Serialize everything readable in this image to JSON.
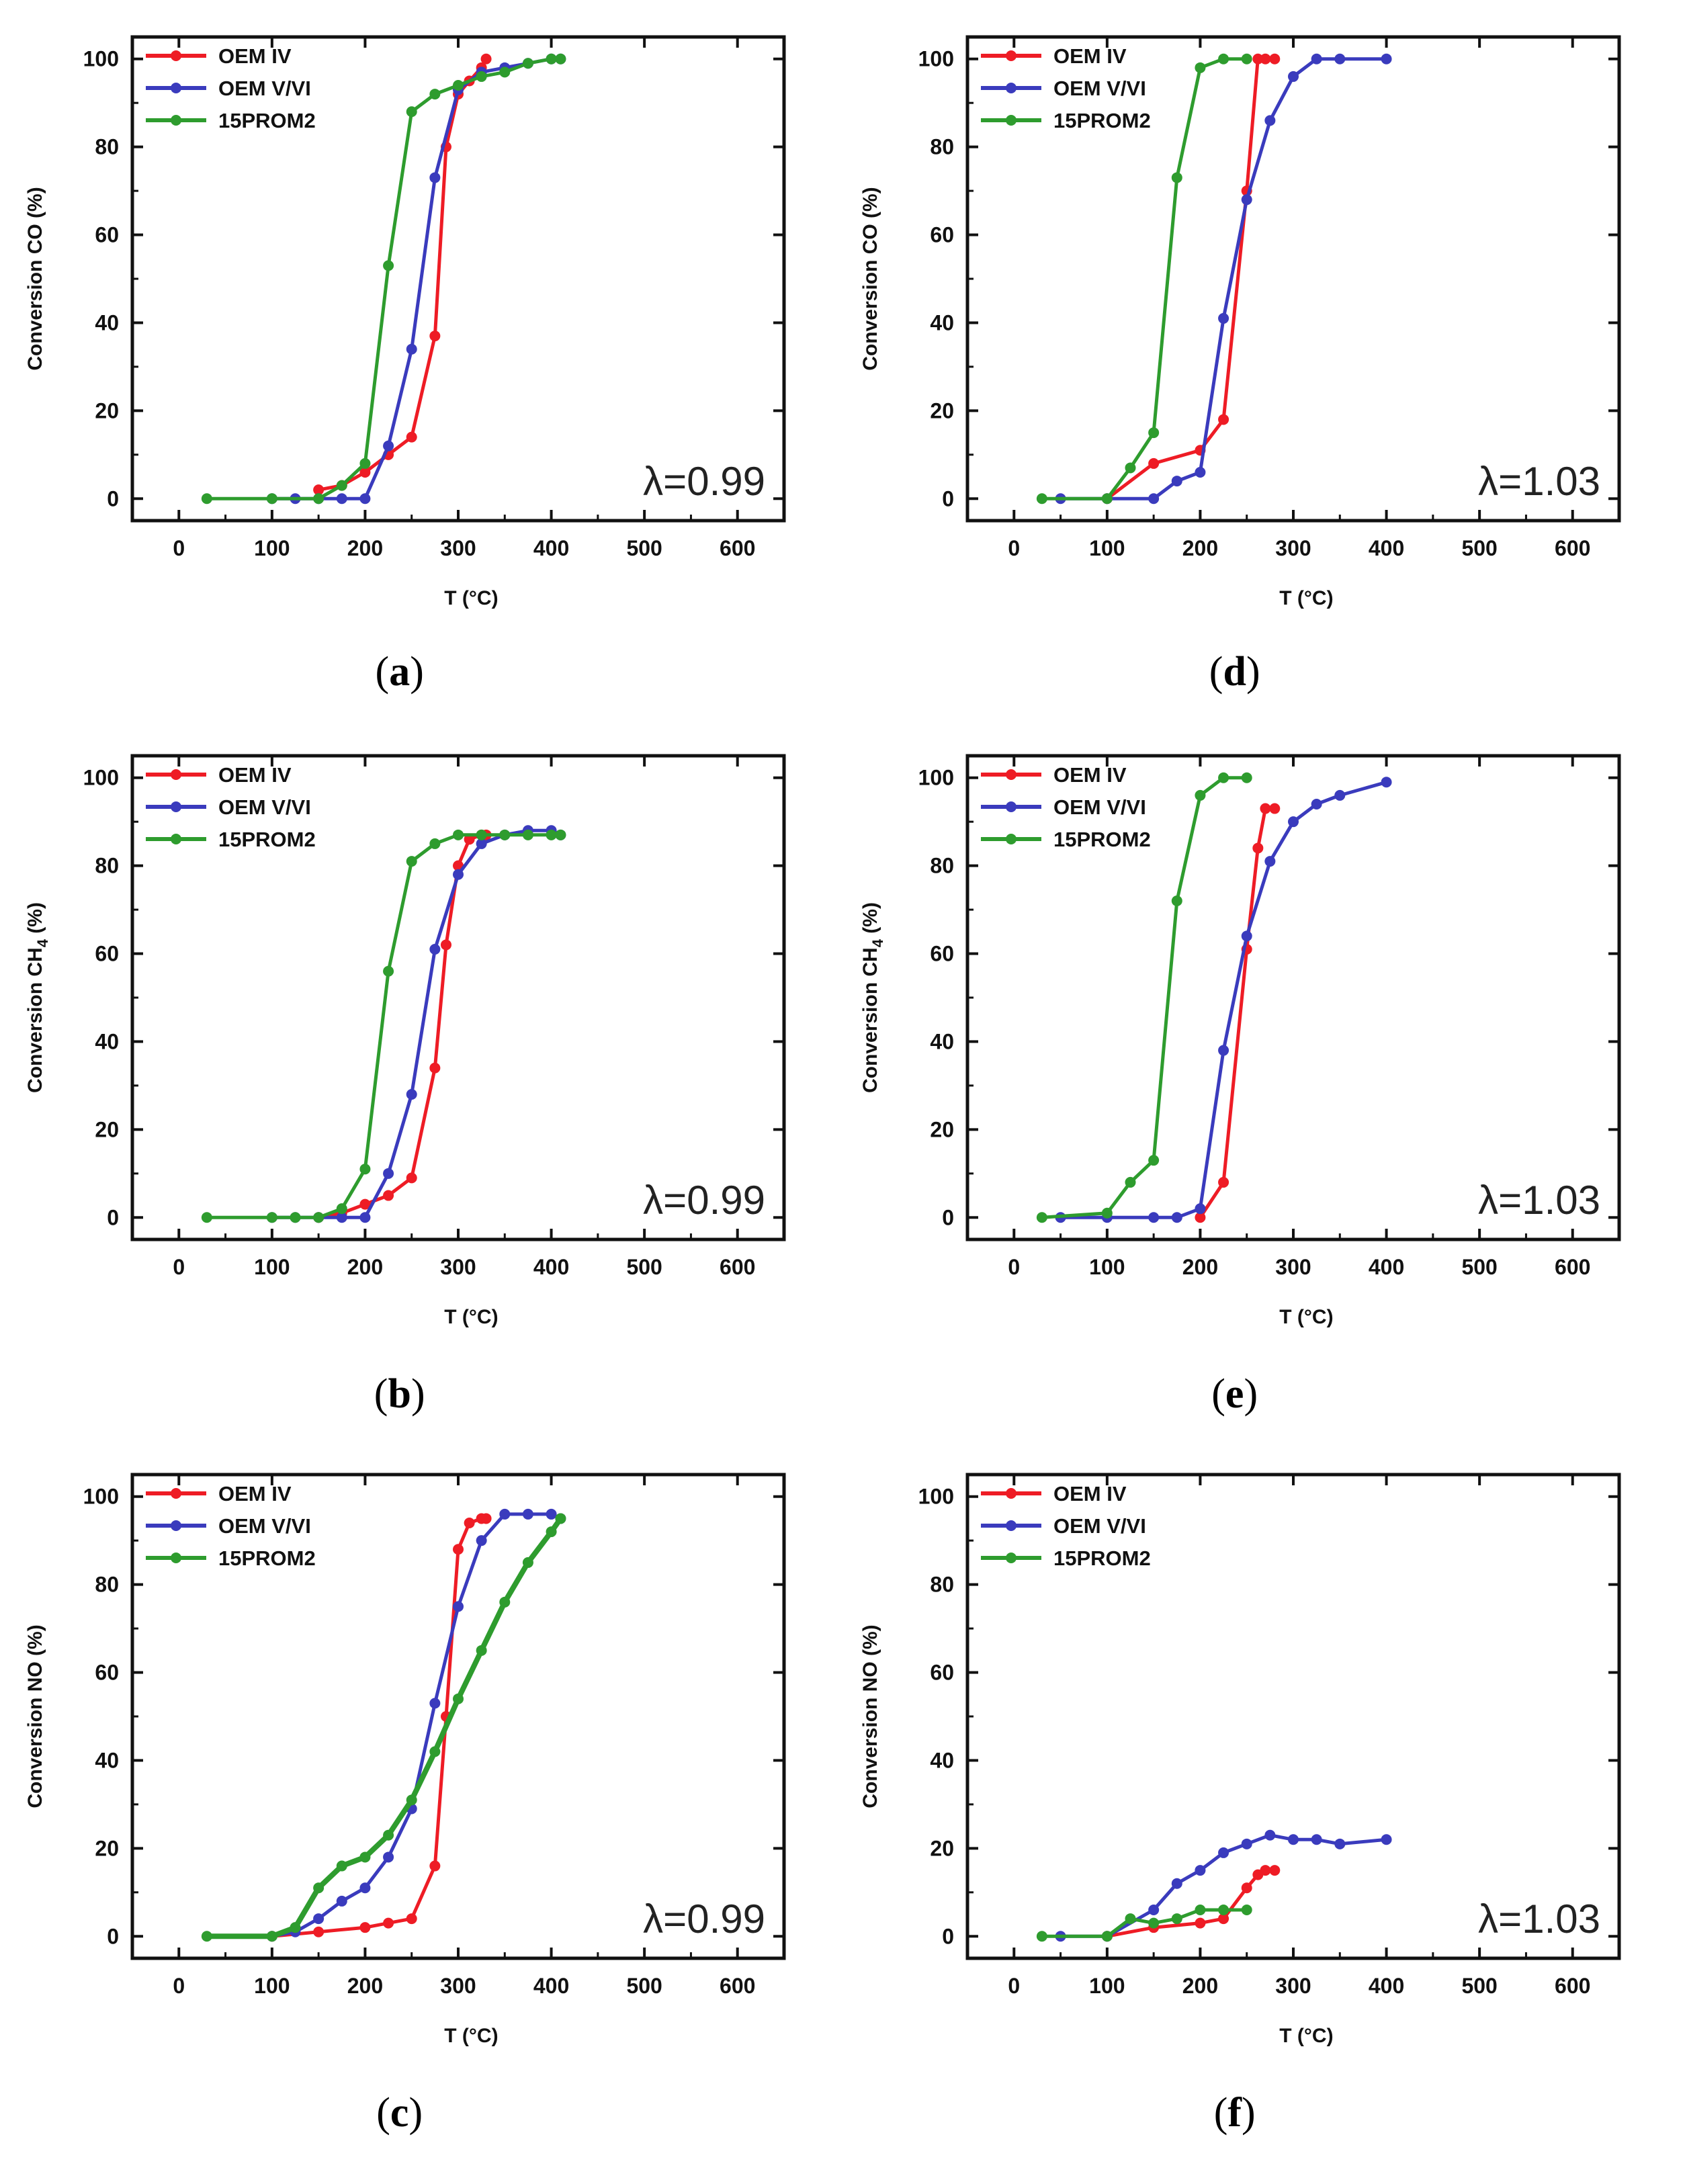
{
  "colors": {
    "oem_iv": "#ee1c25",
    "oem_vvi": "#3a3bbd",
    "prom2": "#2e9c2e",
    "axis": "#111111"
  },
  "x_axis": {
    "label_prefix": "T (",
    "label_unit": "°C",
    "label_suffix": ")",
    "ticks": [
      "0",
      "100",
      "200",
      "300",
      "400",
      "500",
      "600"
    ]
  },
  "y_ticks": [
    "0",
    "20",
    "40",
    "60",
    "80",
    "100"
  ],
  "chart_data": [
    {
      "id": "a",
      "type": "line",
      "caption_open": "(",
      "caption_letter": "a",
      "caption_close": ")",
      "ylabel": "Conversion CO (%)",
      "ylabel_text": "Conversion CO (%)",
      "annotation": "λ=0.99",
      "xlim": [
        -50,
        650
      ],
      "ylim": [
        -5,
        105
      ],
      "legend_location": "top-left",
      "series": [
        {
          "name": "OEM IV",
          "color_key": "oem_iv",
          "x": [
            150,
            175,
            200,
            225,
            250,
            275,
            287,
            300,
            312,
            325,
            330
          ],
          "y": [
            2,
            3,
            6,
            10,
            14,
            37,
            80,
            92,
            95,
            98,
            100
          ]
        },
        {
          "name": "OEM V/VI",
          "color_key": "oem_vvi",
          "x": [
            100,
            125,
            150,
            175,
            200,
            225,
            250,
            275,
            300,
            325,
            350,
            375,
            400,
            410
          ],
          "y": [
            0,
            0,
            0,
            0,
            0,
            12,
            34,
            73,
            93,
            97,
            98,
            99,
            100,
            100
          ]
        },
        {
          "name": "15PROM2",
          "color_key": "prom2",
          "x": [
            30,
            100,
            150,
            175,
            200,
            225,
            250,
            275,
            300,
            325,
            350,
            375,
            400,
            410
          ],
          "y": [
            0,
            0,
            0,
            3,
            8,
            53,
            88,
            92,
            94,
            96,
            97,
            99,
            100,
            100
          ]
        }
      ]
    },
    {
      "id": "b",
      "type": "line",
      "caption_open": "(",
      "caption_letter": "b",
      "caption_close": ")",
      "ylabel": "Conversion CH4 (%)",
      "ylabel_text": "Conversion CH",
      "ylabel_sub": "4",
      "ylabel_after": " (%)",
      "annotation": "λ=0.99",
      "xlim": [
        -50,
        650
      ],
      "ylim": [
        -5,
        105
      ],
      "legend_location": "top-left",
      "series": [
        {
          "name": "OEM IV",
          "color_key": "oem_iv",
          "x": [
            150,
            175,
            200,
            225,
            250,
            275,
            287,
            300,
            312,
            325,
            330
          ],
          "y": [
            0,
            1,
            3,
            5,
            9,
            34,
            62,
            80,
            86,
            87,
            87
          ]
        },
        {
          "name": "OEM V/VI",
          "color_key": "oem_vvi",
          "x": [
            100,
            125,
            150,
            175,
            200,
            225,
            250,
            275,
            300,
            325,
            350,
            375,
            400,
            410
          ],
          "y": [
            0,
            0,
            0,
            0,
            0,
            10,
            28,
            61,
            78,
            85,
            87,
            88,
            88,
            87
          ]
        },
        {
          "name": "15PROM2",
          "color_key": "prom2",
          "x": [
            30,
            100,
            125,
            150,
            175,
            200,
            225,
            250,
            275,
            300,
            325,
            350,
            375,
            400,
            410
          ],
          "y": [
            0,
            0,
            0,
            0,
            2,
            11,
            56,
            81,
            85,
            87,
            87,
            87,
            87,
            87,
            87
          ]
        }
      ]
    },
    {
      "id": "c",
      "type": "line",
      "caption_open": "(",
      "caption_letter": "c",
      "caption_close": ")",
      "ylabel": "Conversion NO (%)",
      "ylabel_text": "Conversion NO (%)",
      "annotation": "λ=0.99",
      "xlim": [
        -50,
        650
      ],
      "ylim": [
        -5,
        105
      ],
      "legend_location": "top-left",
      "series": [
        {
          "name": "OEM IV",
          "color_key": "oem_iv",
          "x": [
            100,
            150,
            200,
            225,
            250,
            275,
            287,
            300,
            312,
            325,
            330
          ],
          "y": [
            0,
            1,
            2,
            3,
            4,
            16,
            50,
            88,
            94,
            95,
            95
          ]
        },
        {
          "name": "OEM V/VI",
          "color_key": "oem_vvi",
          "x": [
            100,
            125,
            150,
            175,
            200,
            225,
            250,
            275,
            300,
            325,
            350,
            375,
            400,
            410
          ],
          "y": [
            0,
            1,
            4,
            8,
            11,
            18,
            29,
            53,
            75,
            90,
            96,
            96,
            96,
            95
          ]
        },
        {
          "name": "15PROM2",
          "color_key": "prom2",
          "x": [
            30,
            100,
            125,
            150,
            175,
            200,
            225,
            250,
            275,
            300,
            325,
            350,
            375,
            400,
            410
          ],
          "y": [
            0,
            0,
            2,
            11,
            16,
            18,
            23,
            31,
            42,
            54,
            65,
            76,
            85,
            92,
            95
          ]
        }
      ]
    },
    {
      "id": "d",
      "type": "line",
      "caption_open": "(",
      "caption_letter": "d",
      "caption_close": ")",
      "ylabel": "Conversion CO (%)",
      "ylabel_text": "Conversion CO (%)",
      "annotation": "λ=1.03",
      "xlim": [
        -50,
        650
      ],
      "ylim": [
        -5,
        105
      ],
      "legend_location": "top-left",
      "series": [
        {
          "name": "OEM IV",
          "color_key": "oem_iv",
          "x": [
            100,
            150,
            200,
            225,
            250,
            262,
            270,
            280
          ],
          "y": [
            0,
            8,
            11,
            18,
            70,
            100,
            100,
            100
          ]
        },
        {
          "name": "OEM V/VI",
          "color_key": "oem_vvi",
          "x": [
            50,
            100,
            150,
            175,
            200,
            225,
            250,
            275,
            300,
            325,
            350,
            400
          ],
          "y": [
            0,
            0,
            0,
            4,
            6,
            41,
            68,
            86,
            96,
            100,
            100,
            100
          ]
        },
        {
          "name": "15PROM2",
          "color_key": "prom2",
          "x": [
            30,
            100,
            125,
            150,
            175,
            200,
            225,
            250
          ],
          "y": [
            0,
            0,
            7,
            15,
            73,
            98,
            100,
            100
          ]
        }
      ]
    },
    {
      "id": "e",
      "type": "line",
      "caption_open": "(",
      "caption_letter": "e",
      "caption_close": ")",
      "ylabel": "Conversion CH4 (%)",
      "ylabel_text": "Conversion CH",
      "ylabel_sub": "4",
      "ylabel_after": " (%)",
      "annotation": "λ=1.03",
      "xlim": [
        -50,
        650
      ],
      "ylim": [
        -5,
        105
      ],
      "legend_location": "top-left",
      "series": [
        {
          "name": "OEM IV",
          "color_key": "oem_iv",
          "x": [
            200,
            225,
            250,
            262,
            270,
            280
          ],
          "y": [
            0,
            8,
            61,
            84,
            93,
            93
          ]
        },
        {
          "name": "OEM V/VI",
          "color_key": "oem_vvi",
          "x": [
            50,
            100,
            150,
            175,
            200,
            225,
            250,
            275,
            300,
            325,
            350,
            400
          ],
          "y": [
            0,
            0,
            0,
            0,
            2,
            38,
            64,
            81,
            90,
            94,
            96,
            99
          ]
        },
        {
          "name": "15PROM2",
          "color_key": "prom2",
          "x": [
            30,
            100,
            125,
            150,
            175,
            200,
            225,
            250
          ],
          "y": [
            0,
            1,
            8,
            13,
            72,
            96,
            100,
            100
          ]
        }
      ]
    },
    {
      "id": "f",
      "type": "line",
      "caption_open": "(",
      "caption_letter": "f",
      "caption_close": ")",
      "ylabel": "Conversion NO (%)",
      "ylabel_text": "Conversion NO (%)",
      "annotation": "λ=1.03",
      "xlim": [
        -50,
        650
      ],
      "ylim": [
        -5,
        105
      ],
      "legend_location": "top-left",
      "series": [
        {
          "name": "OEM IV",
          "color_key": "oem_iv",
          "x": [
            100,
            150,
            200,
            225,
            250,
            262,
            270,
            280
          ],
          "y": [
            0,
            2,
            3,
            4,
            11,
            14,
            15,
            15
          ]
        },
        {
          "name": "OEM V/VI",
          "color_key": "oem_vvi",
          "x": [
            50,
            100,
            150,
            175,
            200,
            225,
            250,
            275,
            300,
            325,
            350,
            400
          ],
          "y": [
            0,
            0,
            6,
            12,
            15,
            19,
            21,
            23,
            22,
            22,
            21,
            22
          ]
        },
        {
          "name": "15PROM2",
          "color_key": "prom2",
          "x": [
            30,
            100,
            125,
            150,
            175,
            200,
            225,
            250
          ],
          "y": [
            0,
            0,
            4,
            3,
            4,
            6,
            6,
            6
          ]
        }
      ]
    }
  ]
}
